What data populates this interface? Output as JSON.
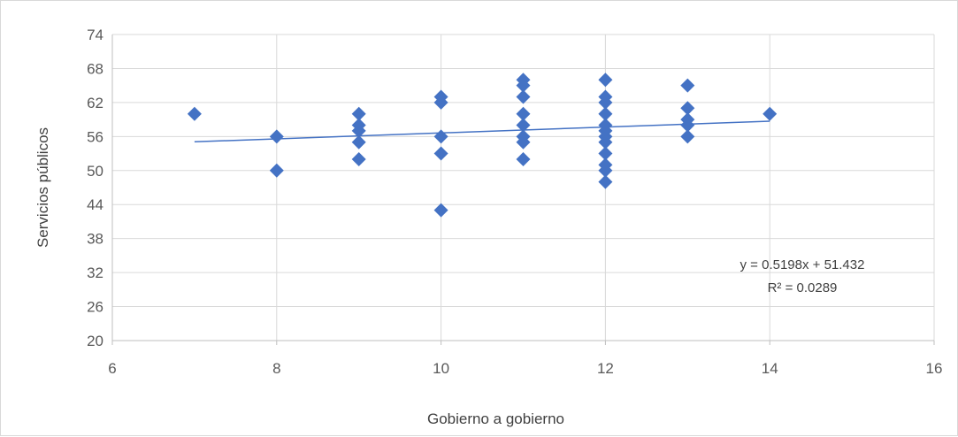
{
  "chart_data": {
    "type": "scatter",
    "title": "",
    "xlabel": "Gobierno a gobierno",
    "ylabel": "Servicios públicos",
    "xlim": [
      6,
      16
    ],
    "ylim": [
      20,
      74
    ],
    "xticks": [
      6,
      8,
      10,
      12,
      14,
      16
    ],
    "yticks": [
      20,
      26,
      32,
      38,
      44,
      50,
      56,
      62,
      68,
      74
    ],
    "grid": true,
    "marker_color": "#4472c4",
    "trendline_color": "#4472c4",
    "trendline": {
      "slope": 0.5198,
      "intercept": 51.432,
      "x_range": [
        7,
        14
      ],
      "equation_label": "y = 0.5198x + 51.432",
      "r2_label": "R² = 0.0289"
    },
    "points": [
      {
        "x": 7,
        "y": 60
      },
      {
        "x": 8,
        "y": 56
      },
      {
        "x": 8,
        "y": 50
      },
      {
        "x": 9,
        "y": 60
      },
      {
        "x": 9,
        "y": 58
      },
      {
        "x": 9,
        "y": 57
      },
      {
        "x": 9,
        "y": 55
      },
      {
        "x": 9,
        "y": 52
      },
      {
        "x": 10,
        "y": 63
      },
      {
        "x": 10,
        "y": 62
      },
      {
        "x": 10,
        "y": 56
      },
      {
        "x": 10,
        "y": 53
      },
      {
        "x": 10,
        "y": 43
      },
      {
        "x": 11,
        "y": 66
      },
      {
        "x": 11,
        "y": 65
      },
      {
        "x": 11,
        "y": 63
      },
      {
        "x": 11,
        "y": 60
      },
      {
        "x": 11,
        "y": 58
      },
      {
        "x": 11,
        "y": 56
      },
      {
        "x": 11,
        "y": 55
      },
      {
        "x": 11,
        "y": 52
      },
      {
        "x": 12,
        "y": 66
      },
      {
        "x": 12,
        "y": 63
      },
      {
        "x": 12,
        "y": 62
      },
      {
        "x": 12,
        "y": 60
      },
      {
        "x": 12,
        "y": 58
      },
      {
        "x": 12,
        "y": 57
      },
      {
        "x": 12,
        "y": 56
      },
      {
        "x": 12,
        "y": 55
      },
      {
        "x": 12,
        "y": 53
      },
      {
        "x": 12,
        "y": 51
      },
      {
        "x": 12,
        "y": 50
      },
      {
        "x": 12,
        "y": 48
      },
      {
        "x": 13,
        "y": 65
      },
      {
        "x": 13,
        "y": 61
      },
      {
        "x": 13,
        "y": 59
      },
      {
        "x": 13,
        "y": 58
      },
      {
        "x": 13,
        "y": 56
      },
      {
        "x": 14,
        "y": 60
      }
    ]
  }
}
